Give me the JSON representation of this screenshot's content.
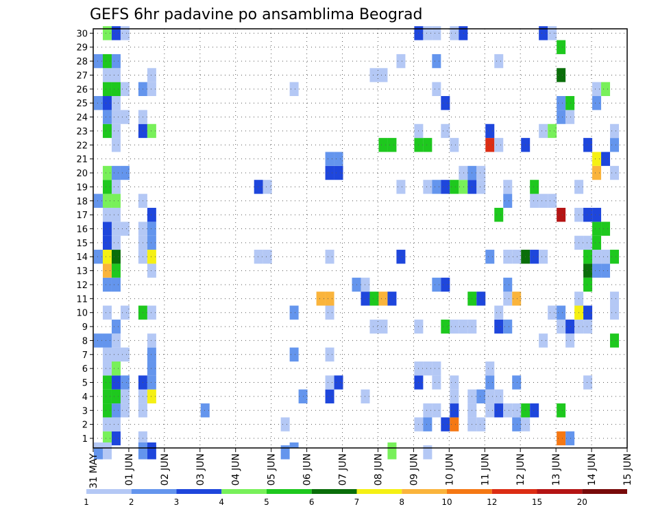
{
  "chart_data": {
    "type": "heatmap",
    "title": "GEFS 6hr padavine po ansamblima Beograd",
    "xlabel": "",
    "ylabel": "",
    "x_tick_labels": [
      "31 MAY",
      "01 JUN",
      "02 JUN",
      "03 JUN",
      "04 JUN",
      "05 JUN",
      "06 JUN",
      "07 JUN",
      "08 JUN",
      "09 JUN",
      "10 JUN",
      "11 JUN",
      "12 JUN",
      "13 JUN",
      "14 JUN",
      "15 JUN"
    ],
    "y_tick_labels": [
      "1",
      "2",
      "3",
      "4",
      "5",
      "6",
      "7",
      "8",
      "9",
      "10",
      "11",
      "12",
      "13",
      "14",
      "15",
      "16",
      "17",
      "18",
      "19",
      "20",
      "21",
      "22",
      "23",
      "24",
      "25",
      "26",
      "27",
      "28",
      "29",
      "30"
    ],
    "x_range_steps": [
      0,
      60
    ],
    "x_unit": "6-hour steps from 31 MAY 00Z (4 steps per day)",
    "y_range": [
      0,
      30
    ],
    "grid": true,
    "legend_placement": "bottom",
    "legend_breaks": [
      "1",
      "2",
      "3",
      "4",
      "5",
      "6",
      "7",
      "8",
      "10",
      "12",
      "15",
      "20"
    ],
    "colors": [
      "#b4c8f5",
      "#6495ed",
      "#1e46dc",
      "#78f05a",
      "#1ec81e",
      "#0a6e0a",
      "#f5f014",
      "#fab43c",
      "#f57814",
      "#dc2d14",
      "#b41414",
      "#780a0a"
    ],
    "cells_note": "each cell: [x_step, member, color_class_index]",
    "cells": [
      [
        0,
        0,
        1
      ],
      [
        1,
        0,
        0
      ],
      [
        5,
        0,
        1
      ],
      [
        6,
        0,
        2
      ],
      [
        21,
        0,
        1
      ],
      [
        33,
        0,
        3
      ],
      [
        37,
        0,
        0
      ],
      [
        1,
        1,
        3
      ],
      [
        2,
        1,
        2
      ],
      [
        5,
        1,
        0
      ],
      [
        52,
        1,
        8
      ],
      [
        53,
        1,
        1
      ],
      [
        1,
        2,
        0
      ],
      [
        2,
        2,
        0
      ],
      [
        21,
        2,
        0
      ],
      [
        36,
        2,
        0
      ],
      [
        37,
        2,
        1
      ],
      [
        39,
        2,
        2
      ],
      [
        40,
        2,
        8
      ],
      [
        42,
        2,
        0
      ],
      [
        43,
        2,
        0
      ],
      [
        47,
        2,
        1
      ],
      [
        48,
        2,
        0
      ],
      [
        1,
        3,
        4
      ],
      [
        2,
        3,
        1
      ],
      [
        3,
        3,
        0
      ],
      [
        5,
        3,
        0
      ],
      [
        12,
        3,
        1
      ],
      [
        37,
        3,
        0
      ],
      [
        38,
        3,
        0
      ],
      [
        40,
        3,
        2
      ],
      [
        42,
        3,
        0
      ],
      [
        44,
        3,
        0
      ],
      [
        45,
        3,
        2
      ],
      [
        46,
        3,
        0
      ],
      [
        47,
        3,
        0
      ],
      [
        48,
        3,
        4
      ],
      [
        49,
        3,
        2
      ],
      [
        52,
        3,
        4
      ],
      [
        1,
        4,
        4
      ],
      [
        2,
        4,
        4
      ],
      [
        3,
        4,
        0
      ],
      [
        5,
        4,
        0
      ],
      [
        6,
        4,
        6
      ],
      [
        23,
        4,
        1
      ],
      [
        26,
        4,
        2
      ],
      [
        30,
        4,
        0
      ],
      [
        40,
        4,
        0
      ],
      [
        42,
        4,
        0
      ],
      [
        43,
        4,
        1
      ],
      [
        44,
        4,
        0
      ],
      [
        45,
        4,
        0
      ],
      [
        1,
        5,
        4
      ],
      [
        2,
        5,
        2
      ],
      [
        3,
        5,
        1
      ],
      [
        5,
        5,
        2
      ],
      [
        6,
        5,
        1
      ],
      [
        26,
        5,
        0
      ],
      [
        27,
        5,
        2
      ],
      [
        36,
        5,
        2
      ],
      [
        38,
        5,
        0
      ],
      [
        40,
        5,
        0
      ],
      [
        44,
        5,
        1
      ],
      [
        47,
        5,
        1
      ],
      [
        55,
        5,
        0
      ],
      [
        1,
        6,
        0
      ],
      [
        2,
        6,
        3
      ],
      [
        6,
        6,
        1
      ],
      [
        36,
        6,
        0
      ],
      [
        37,
        6,
        0
      ],
      [
        38,
        6,
        0
      ],
      [
        44,
        6,
        0
      ],
      [
        1,
        7,
        0
      ],
      [
        2,
        7,
        0
      ],
      [
        3,
        7,
        0
      ],
      [
        6,
        7,
        1
      ],
      [
        22,
        7,
        1
      ],
      [
        26,
        7,
        0
      ],
      [
        0,
        8,
        1
      ],
      [
        1,
        8,
        1
      ],
      [
        2,
        8,
        0
      ],
      [
        6,
        8,
        0
      ],
      [
        50,
        8,
        0
      ],
      [
        53,
        8,
        0
      ],
      [
        58,
        8,
        4
      ],
      [
        59,
        8,
        6
      ],
      [
        60,
        8,
        0
      ],
      [
        2,
        9,
        1
      ],
      [
        31,
        9,
        0
      ],
      [
        32,
        9,
        0
      ],
      [
        36,
        9,
        0
      ],
      [
        39,
        9,
        4
      ],
      [
        40,
        9,
        0
      ],
      [
        41,
        9,
        0
      ],
      [
        42,
        9,
        0
      ],
      [
        45,
        9,
        2
      ],
      [
        46,
        9,
        1
      ],
      [
        52,
        9,
        0
      ],
      [
        53,
        9,
        2
      ],
      [
        54,
        9,
        0
      ],
      [
        55,
        9,
        0
      ],
      [
        1,
        10,
        0
      ],
      [
        3,
        10,
        0
      ],
      [
        5,
        10,
        4
      ],
      [
        6,
        10,
        0
      ],
      [
        22,
        10,
        1
      ],
      [
        26,
        10,
        0
      ],
      [
        45,
        10,
        0
      ],
      [
        51,
        10,
        0
      ],
      [
        52,
        10,
        1
      ],
      [
        54,
        10,
        6
      ],
      [
        55,
        10,
        2
      ],
      [
        58,
        10,
        0
      ],
      [
        59,
        10,
        0
      ],
      [
        60,
        10,
        2
      ],
      [
        25,
        11,
        7
      ],
      [
        26,
        11,
        7
      ],
      [
        30,
        11,
        2
      ],
      [
        31,
        11,
        4
      ],
      [
        32,
        11,
        7
      ],
      [
        33,
        11,
        2
      ],
      [
        42,
        11,
        4
      ],
      [
        43,
        11,
        2
      ],
      [
        46,
        11,
        0
      ],
      [
        47,
        11,
        7
      ],
      [
        54,
        11,
        0
      ],
      [
        58,
        11,
        0
      ],
      [
        59,
        11,
        1
      ],
      [
        1,
        12,
        1
      ],
      [
        2,
        12,
        1
      ],
      [
        29,
        12,
        1
      ],
      [
        30,
        12,
        0
      ],
      [
        38,
        12,
        1
      ],
      [
        39,
        12,
        2
      ],
      [
        46,
        12,
        1
      ],
      [
        55,
        12,
        4
      ],
      [
        1,
        13,
        7
      ],
      [
        2,
        13,
        4
      ],
      [
        6,
        13,
        0
      ],
      [
        55,
        13,
        5
      ],
      [
        56,
        13,
        1
      ],
      [
        57,
        13,
        1
      ],
      [
        0,
        14,
        1
      ],
      [
        1,
        14,
        6
      ],
      [
        2,
        14,
        5
      ],
      [
        5,
        14,
        0
      ],
      [
        6,
        14,
        6
      ],
      [
        18,
        14,
        0
      ],
      [
        19,
        14,
        0
      ],
      [
        26,
        14,
        0
      ],
      [
        34,
        14,
        2
      ],
      [
        44,
        14,
        1
      ],
      [
        46,
        14,
        0
      ],
      [
        47,
        14,
        0
      ],
      [
        48,
        14,
        5
      ],
      [
        49,
        14,
        2
      ],
      [
        50,
        14,
        0
      ],
      [
        55,
        14,
        4
      ],
      [
        56,
        14,
        0
      ],
      [
        57,
        14,
        0
      ],
      [
        58,
        14,
        4
      ],
      [
        59,
        14,
        1
      ],
      [
        1,
        15,
        2
      ],
      [
        2,
        15,
        0
      ],
      [
        5,
        15,
        0
      ],
      [
        6,
        15,
        1
      ],
      [
        54,
        15,
        0
      ],
      [
        55,
        15,
        0
      ],
      [
        56,
        15,
        4
      ],
      [
        1,
        16,
        2
      ],
      [
        2,
        16,
        0
      ],
      [
        3,
        16,
        0
      ],
      [
        5,
        16,
        0
      ],
      [
        6,
        16,
        1
      ],
      [
        56,
        16,
        4
      ],
      [
        57,
        16,
        4
      ],
      [
        1,
        17,
        0
      ],
      [
        2,
        17,
        0
      ],
      [
        6,
        17,
        2
      ],
      [
        45,
        17,
        4
      ],
      [
        52,
        17,
        10
      ],
      [
        54,
        17,
        0
      ],
      [
        55,
        17,
        2
      ],
      [
        56,
        17,
        2
      ],
      [
        60,
        17,
        1
      ],
      [
        0,
        18,
        1
      ],
      [
        1,
        18,
        3
      ],
      [
        2,
        18,
        3
      ],
      [
        5,
        18,
        0
      ],
      [
        46,
        18,
        1
      ],
      [
        49,
        18,
        0
      ],
      [
        50,
        18,
        0
      ],
      [
        51,
        18,
        0
      ],
      [
        60,
        18,
        2
      ],
      [
        1,
        19,
        4
      ],
      [
        2,
        19,
        0
      ],
      [
        18,
        19,
        2
      ],
      [
        19,
        19,
        0
      ],
      [
        34,
        19,
        0
      ],
      [
        37,
        19,
        0
      ],
      [
        38,
        19,
        1
      ],
      [
        39,
        19,
        2
      ],
      [
        40,
        19,
        4
      ],
      [
        41,
        19,
        3
      ],
      [
        42,
        19,
        2
      ],
      [
        43,
        19,
        0
      ],
      [
        46,
        19,
        0
      ],
      [
        49,
        19,
        4
      ],
      [
        54,
        19,
        0
      ],
      [
        1,
        20,
        3
      ],
      [
        2,
        20,
        1
      ],
      [
        3,
        20,
        1
      ],
      [
        26,
        20,
        2
      ],
      [
        27,
        20,
        2
      ],
      [
        41,
        20,
        0
      ],
      [
        42,
        20,
        1
      ],
      [
        43,
        20,
        0
      ],
      [
        56,
        20,
        7
      ],
      [
        58,
        20,
        0
      ],
      [
        26,
        21,
        1
      ],
      [
        27,
        21,
        1
      ],
      [
        56,
        21,
        6
      ],
      [
        57,
        21,
        2
      ],
      [
        60,
        21,
        1
      ],
      [
        2,
        22,
        0
      ],
      [
        32,
        22,
        4
      ],
      [
        33,
        22,
        4
      ],
      [
        36,
        22,
        4
      ],
      [
        37,
        22,
        4
      ],
      [
        40,
        22,
        0
      ],
      [
        44,
        22,
        9
      ],
      [
        45,
        22,
        0
      ],
      [
        48,
        22,
        2
      ],
      [
        55,
        22,
        2
      ],
      [
        58,
        22,
        1
      ],
      [
        59,
        22,
        3
      ],
      [
        1,
        23,
        4
      ],
      [
        2,
        23,
        0
      ],
      [
        5,
        23,
        2
      ],
      [
        6,
        23,
        3
      ],
      [
        36,
        23,
        0
      ],
      [
        39,
        23,
        0
      ],
      [
        44,
        23,
        2
      ],
      [
        50,
        23,
        0
      ],
      [
        51,
        23,
        3
      ],
      [
        58,
        23,
        0
      ],
      [
        1,
        24,
        1
      ],
      [
        2,
        24,
        0
      ],
      [
        3,
        24,
        0
      ],
      [
        5,
        24,
        0
      ],
      [
        52,
        24,
        1
      ],
      [
        53,
        24,
        0
      ],
      [
        60,
        24,
        1
      ],
      [
        0,
        25,
        1
      ],
      [
        1,
        25,
        2
      ],
      [
        2,
        25,
        0
      ],
      [
        39,
        25,
        2
      ],
      [
        52,
        25,
        1
      ],
      [
        53,
        25,
        4
      ],
      [
        56,
        25,
        1
      ],
      [
        1,
        26,
        4
      ],
      [
        2,
        26,
        4
      ],
      [
        3,
        26,
        0
      ],
      [
        5,
        26,
        1
      ],
      [
        6,
        26,
        0
      ],
      [
        22,
        26,
        0
      ],
      [
        38,
        26,
        0
      ],
      [
        56,
        26,
        0
      ],
      [
        57,
        26,
        3
      ],
      [
        60,
        26,
        0
      ],
      [
        1,
        27,
        0
      ],
      [
        2,
        27,
        0
      ],
      [
        6,
        27,
        0
      ],
      [
        31,
        27,
        0
      ],
      [
        32,
        27,
        0
      ],
      [
        52,
        27,
        5
      ],
      [
        0,
        28,
        1
      ],
      [
        1,
        28,
        4
      ],
      [
        2,
        28,
        1
      ],
      [
        34,
        28,
        0
      ],
      [
        38,
        28,
        1
      ],
      [
        45,
        28,
        0
      ],
      [
        52,
        29,
        4
      ],
      [
        1,
        30,
        3
      ],
      [
        2,
        30,
        2
      ],
      [
        3,
        30,
        0
      ],
      [
        36,
        30,
        2
      ],
      [
        37,
        30,
        0
      ],
      [
        38,
        30,
        0
      ],
      [
        40,
        30,
        0
      ],
      [
        41,
        30,
        2
      ],
      [
        50,
        30,
        2
      ],
      [
        51,
        30,
        0
      ],
      [
        1,
        -1,
        0
      ],
      [
        0,
        -1,
        0
      ],
      [
        5,
        -1,
        1
      ],
      [
        6,
        -1,
        2
      ],
      [
        22,
        -1,
        1
      ],
      [
        33,
        -1,
        3
      ]
    ]
  }
}
